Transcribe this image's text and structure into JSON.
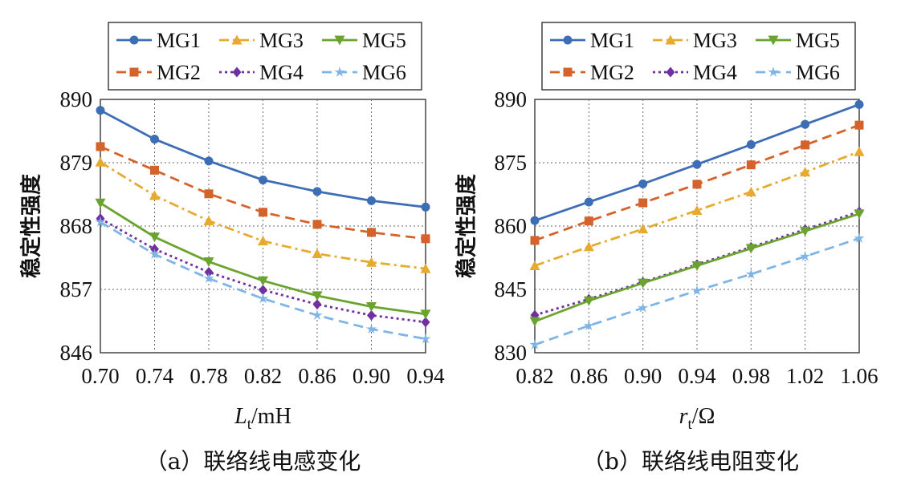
{
  "chart_data": [
    {
      "type": "line",
      "caption": "（a）联络线电感变化",
      "xlabel_main": "L",
      "xlabel_sub": "t",
      "xlabel_unit": "/mH",
      "ylabel": "稳定性强度",
      "x": [
        0.7,
        0.74,
        0.78,
        0.82,
        0.86,
        0.9,
        0.94
      ],
      "x_tick_labels": [
        "0.70",
        "0.74",
        "0.78",
        "0.82",
        "0.86",
        "0.90",
        "0.94"
      ],
      "xlim": [
        0.7,
        0.94
      ],
      "ylim": [
        846,
        890
      ],
      "y_ticks": [
        846,
        857,
        868,
        879,
        890
      ],
      "y_tick_labels": [
        "846",
        "857",
        "868",
        "879",
        "890"
      ],
      "grid": true,
      "legend_position": "top",
      "series": [
        {
          "name": "MG1",
          "values": [
            888.1,
            883.1,
            879.3,
            876.0,
            874.0,
            872.4,
            871.3
          ]
        },
        {
          "name": "MG2",
          "values": [
            881.8,
            877.7,
            873.6,
            870.4,
            868.3,
            866.9,
            865.8
          ]
        },
        {
          "name": "MG3",
          "values": [
            879.1,
            873.3,
            868.9,
            865.4,
            863.2,
            861.7,
            860.6
          ]
        },
        {
          "name": "MG4",
          "values": [
            869.3,
            864.0,
            860.0,
            856.9,
            854.4,
            852.5,
            851.3
          ]
        },
        {
          "name": "MG5",
          "values": [
            872.0,
            866.1,
            861.8,
            858.5,
            855.9,
            854.0,
            852.7
          ]
        },
        {
          "name": "MG6",
          "values": [
            868.7,
            863.1,
            858.9,
            855.4,
            852.5,
            850.1,
            848.4
          ]
        }
      ]
    },
    {
      "type": "line",
      "caption": "（b）联络线电阻变化",
      "xlabel_main": "r",
      "xlabel_sub": "t",
      "xlabel_unit": "/Ω",
      "ylabel": "稳定性强度",
      "x": [
        0.82,
        0.86,
        0.9,
        0.94,
        0.98,
        1.02,
        1.06
      ],
      "x_tick_labels": [
        "0.82",
        "0.86",
        "0.90",
        "0.94",
        "0.98",
        "1.02",
        "1.06"
      ],
      "xlim": [
        0.82,
        1.06
      ],
      "ylim": [
        830,
        890
      ],
      "y_ticks": [
        830,
        845,
        860,
        875,
        890
      ],
      "y_tick_labels": [
        "830",
        "845",
        "860",
        "875",
        "890"
      ],
      "grid": true,
      "legend_position": "top",
      "series": [
        {
          "name": "MG1",
          "values": [
            861.3,
            865.7,
            870.0,
            874.6,
            879.3,
            884.1,
            888.8
          ]
        },
        {
          "name": "MG2",
          "values": [
            856.6,
            861.2,
            865.5,
            869.9,
            874.5,
            879.2,
            883.9
          ]
        },
        {
          "name": "MG3",
          "values": [
            850.6,
            855.1,
            859.3,
            863.7,
            868.1,
            872.8,
            877.6
          ]
        },
        {
          "name": "MG4",
          "values": [
            838.9,
            842.7,
            846.7,
            850.9,
            855.0,
            859.2,
            863.4
          ]
        },
        {
          "name": "MG5",
          "values": [
            837.4,
            842.3,
            846.5,
            850.6,
            854.7,
            858.8,
            862.9
          ]
        },
        {
          "name": "MG6",
          "values": [
            831.9,
            836.4,
            840.6,
            844.7,
            848.6,
            852.8,
            857.1
          ]
        }
      ]
    }
  ],
  "series_styles": [
    {
      "name": "MG1",
      "color": "#3d6db5",
      "marker": "circle",
      "dash": "solid"
    },
    {
      "name": "MG2",
      "color": "#d5622a",
      "marker": "square",
      "dash": "dashed"
    },
    {
      "name": "MG3",
      "color": "#e6ab2e",
      "marker": "triangle",
      "dash": "dashdot"
    },
    {
      "name": "MG4",
      "color": "#7030a0",
      "marker": "diamond",
      "dash": "dotted"
    },
    {
      "name": "MG5",
      "color": "#6aa42f",
      "marker": "triangle-down",
      "dash": "solid"
    },
    {
      "name": "MG6",
      "color": "#7fb5e6",
      "marker": "star",
      "dash": "dashed"
    }
  ]
}
